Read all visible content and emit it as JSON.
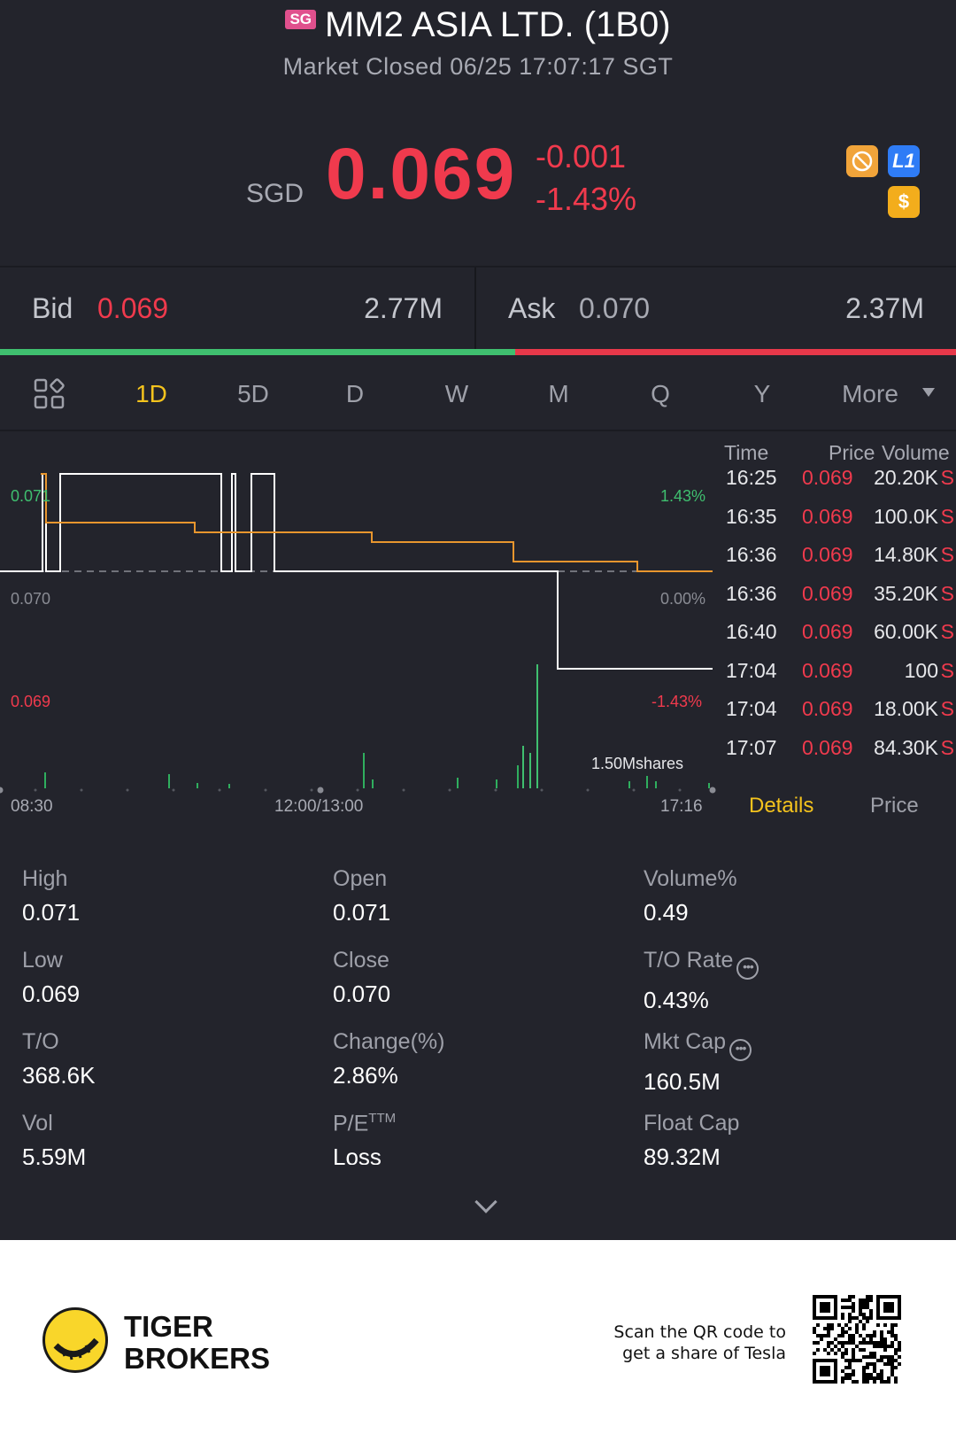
{
  "header": {
    "market_badge": "SG",
    "title": "MM2 ASIA LTD. (1B0)",
    "status": "Market Closed 06/25 17:07:17 SGT"
  },
  "quote": {
    "currency": "SGD",
    "price": "0.069",
    "change": "-0.001",
    "change_pct": "-1.43%",
    "icons": [
      "hand-stop-icon",
      "level1-icon",
      "dollar-icon"
    ],
    "icon_l1_text": "L1",
    "icon_dollar_text": "$"
  },
  "bidask": {
    "bid_label": "Bid",
    "bid_price": "0.069",
    "bid_size": "2.77M",
    "ask_label": "Ask",
    "ask_price": "0.070",
    "ask_size": "2.37M",
    "bid_ratio": 0.539
  },
  "tabs": {
    "items": [
      "1D",
      "5D",
      "D",
      "W",
      "M",
      "Q",
      "Y"
    ],
    "active": "1D",
    "more_label": "More"
  },
  "chart": {
    "y_top_left": "0.071",
    "y_mid_left": "0.070",
    "y_bot_left": "0.069",
    "y_top_right": "1.43%",
    "y_mid_right": "0.00%",
    "y_bot_right": "-1.43%",
    "volume_label": "1.50Mshares",
    "time_start": "08:30",
    "time_mid": "12:00/13:00",
    "time_end": "17:16"
  },
  "chart_data": {
    "type": "line",
    "x_ticks": [
      "08:30",
      "12:00/13:00",
      "17:16"
    ],
    "ylim": [
      0.069,
      0.071
    ],
    "reference_price": 0.07,
    "series": [
      {
        "values": [
          0.07,
          0.071,
          0.071,
          0.07,
          0.071,
          0.07,
          0.071,
          0.07,
          0.07,
          0.07,
          0.069,
          0.069
        ]
      },
      {
        "values": [
          0.071,
          0.0705,
          0.0705,
          0.0704,
          0.0704,
          0.0703,
          0.0701,
          0.0701,
          0.07,
          0.07
        ]
      }
    ],
    "volume_max": "1.50Mshares"
  },
  "trades": {
    "headers": {
      "time": "Time",
      "price": "Price",
      "volume": "Volume"
    },
    "rows": [
      {
        "time": "16:25",
        "price": "0.069",
        "volume": "20.20K",
        "side": "S"
      },
      {
        "time": "16:35",
        "price": "0.069",
        "volume": "100.0K",
        "side": "S"
      },
      {
        "time": "16:36",
        "price": "0.069",
        "volume": "14.80K",
        "side": "S"
      },
      {
        "time": "16:36",
        "price": "0.069",
        "volume": "35.20K",
        "side": "S"
      },
      {
        "time": "16:40",
        "price": "0.069",
        "volume": "60.00K",
        "side": "S"
      },
      {
        "time": "17:04",
        "price": "0.069",
        "volume": "100",
        "side": "S"
      },
      {
        "time": "17:04",
        "price": "0.069",
        "volume": "18.00K",
        "side": "S"
      },
      {
        "time": "17:07",
        "price": "0.069",
        "volume": "84.30K",
        "side": "S"
      }
    ],
    "tab_details": "Details",
    "tab_price": "Price"
  },
  "stats": [
    {
      "label": "High",
      "value": "0.071"
    },
    {
      "label": "Open",
      "value": "0.071"
    },
    {
      "label": "Volume%",
      "value": "0.49"
    },
    {
      "label": "Low",
      "value": "0.069"
    },
    {
      "label": "Close",
      "value": "0.070"
    },
    {
      "label": "T/O Rate",
      "value": "0.43%"
    },
    {
      "label": "T/O",
      "value": "368.6K"
    },
    {
      "label": "Change(%)",
      "value": "2.86%"
    },
    {
      "label": "Mkt Cap",
      "value": "160.5M"
    },
    {
      "label": "Vol",
      "value": "5.59M"
    },
    {
      "label": "P/E",
      "label_sup": "TTM",
      "value": "Loss"
    },
    {
      "label": "Float Cap",
      "value": "89.32M"
    }
  ],
  "footer": {
    "brand_line1": "TIGER",
    "brand_line2": "BROKERS",
    "qr_caption_line1": "Scan the QR code to",
    "qr_caption_line2": "get a share of Tesla"
  },
  "colors": {
    "background": "#23242c",
    "down_red": "#f03a4d",
    "up_green": "#3fbf6f",
    "accent_yellow": "#f4c31d",
    "avg_line_orange": "#e8962e"
  }
}
